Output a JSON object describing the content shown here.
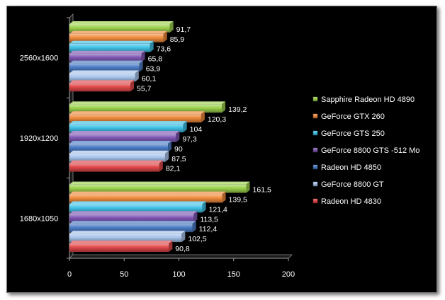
{
  "chart_data": {
    "type": "bar",
    "orientation": "horizontal",
    "categories": [
      "2560x1600",
      "1920x1200",
      "1680x1050"
    ],
    "series": [
      {
        "name": "Sapphire Radeon HD 4890",
        "color": "#9bd14b",
        "values": [
          91.7,
          139.2,
          161.5
        ],
        "labels": [
          "91,7",
          "139,2",
          "161,5"
        ]
      },
      {
        "name": "GeForce GTX 260",
        "color": "#f08a3c",
        "values": [
          85.9,
          120.3,
          139.5
        ],
        "labels": [
          "85,9",
          "120,3",
          "139,5"
        ]
      },
      {
        "name": "GeForce GTS 250",
        "color": "#3fc2e6",
        "values": [
          73.6,
          104,
          121.4
        ],
        "labels": [
          "73,6",
          "104",
          "121,4"
        ]
      },
      {
        "name": "GeForce 8800 GTS -512 Mo",
        "color": "#7f57b4",
        "values": [
          65.8,
          97.3,
          113.5
        ],
        "labels": [
          "65,8",
          "97,3",
          "113,5"
        ]
      },
      {
        "name": "Radeon HD 4850",
        "color": "#4b7cc6",
        "values": [
          63.9,
          90,
          112.4
        ],
        "labels": [
          "63,9",
          "90",
          "112,4"
        ]
      },
      {
        "name": "GeForce 8800 GT",
        "color": "#a8c4ec",
        "values": [
          60.1,
          87.5,
          102.5
        ],
        "labels": [
          "60,1",
          "87,5",
          "102,5"
        ]
      },
      {
        "name": "Radeon HD 4830",
        "color": "#e2484a",
        "values": [
          55.7,
          82.1,
          90.8
        ],
        "labels": [
          "55,7",
          "82,1",
          "90,8"
        ]
      }
    ],
    "xlim": [
      0,
      200
    ],
    "x_ticks": [
      0,
      50,
      100,
      150,
      200
    ],
    "legend_position": "right",
    "grid": false
  }
}
